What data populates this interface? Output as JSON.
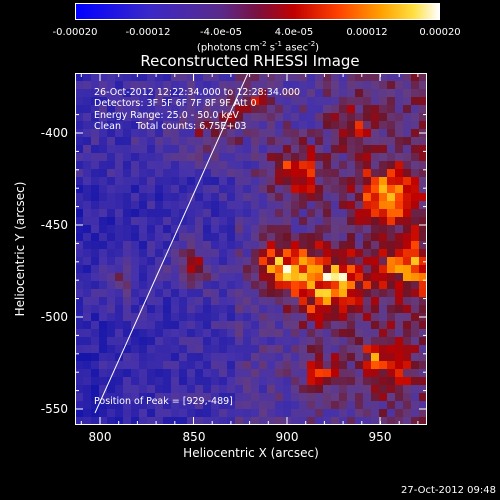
{
  "colorbar": {
    "ticks": [
      "-0.00020",
      "-0.00012",
      "-4.0e-05",
      "4.0e-05",
      "0.00012",
      "0.00020"
    ],
    "units_main": "(photons cm",
    "units_sup1": "-2",
    "units_mid1": " s",
    "units_sup2": "-1",
    "units_mid2": " asec",
    "units_sup3": "-2",
    "units_end": ")"
  },
  "plot": {
    "title": "Reconstructed RHESSI Image",
    "annotations": {
      "time": "26-Oct-2012 12:22:34.000 to 12:28:34.000",
      "detectors": "Detectors: 3F 5F 6F 7F 8F 9F Att 0",
      "energy": "Energy Range: 25.0 - 50.0 keV",
      "clean": "Clean     Total counts: 6.75E+03",
      "peak": "Position of Peak = [929,-489]"
    },
    "x_axis": {
      "label": "Heliocentric X (arcsec)",
      "ticks": [
        "800",
        "850",
        "900",
        "950"
      ]
    },
    "y_axis": {
      "label": "Heliocentric Y (arcsec)",
      "ticks": [
        "-400",
        "-450",
        "-500",
        "-550"
      ]
    }
  },
  "footer": {
    "timestamp": "27-Oct-2012 09:48"
  },
  "colors": {
    "frame": "#ffffff",
    "limb_line": "#ffffff"
  }
}
